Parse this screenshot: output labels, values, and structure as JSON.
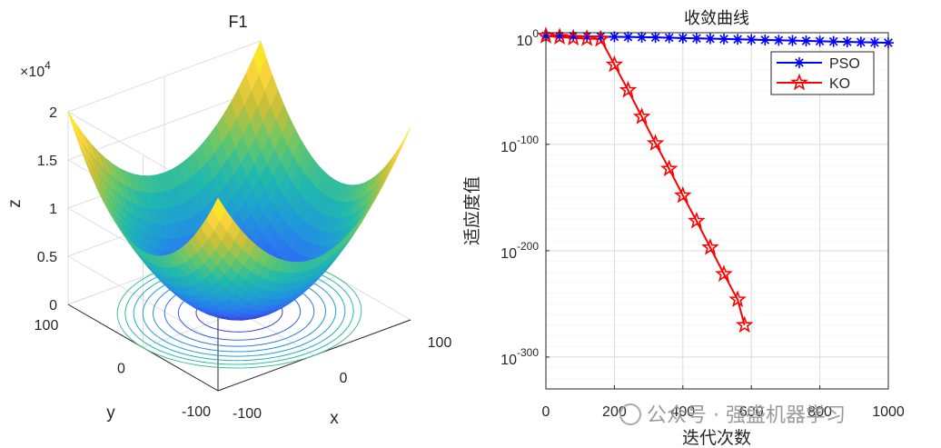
{
  "chart_data": [
    {
      "type": "surface3d",
      "title": "F1",
      "xlabel": "x",
      "ylabel": "y",
      "zlabel": "z",
      "z_exponent_label": "×10",
      "z_exponent_power": "4",
      "xlim": [
        -100,
        100
      ],
      "ylim": [
        -100,
        100
      ],
      "zlim": [
        0,
        20000
      ],
      "x_ticks": [
        "-100",
        "0",
        "100"
      ],
      "y_ticks": [
        "-100",
        "0",
        "100"
      ],
      "z_ticks": [
        "0",
        "0.5",
        "1",
        "1.5",
        "2"
      ],
      "function": "z = x^2 + y^2",
      "contour_levels": [
        1250,
        2500,
        3750,
        5000,
        6250,
        7500,
        8750,
        10000
      ],
      "colormap": [
        "#3e26a8",
        "#2e6bf7",
        "#1f9ad8",
        "#20b9ad",
        "#66c76a",
        "#c7bf3b",
        "#f9d43c",
        "#f9fb14"
      ]
    },
    {
      "type": "line",
      "title": "收敛曲线",
      "xlabel": "迭代次数",
      "ylabel": "适应度值",
      "yscale": "log",
      "xlim": [
        0,
        1000
      ],
      "ylim_exponent": [
        -330,
        5
      ],
      "x_ticks": [
        "0",
        "200",
        "400",
        "600",
        "800",
        "1000"
      ],
      "y_tick_base": "10",
      "y_tick_exponents": [
        "0",
        "-100",
        "-200",
        "-300"
      ],
      "grid": true,
      "legend_position": "top-right",
      "series": [
        {
          "name": "PSO",
          "color": "#0000ff",
          "marker": "asterisk",
          "x": [
            0,
            40,
            80,
            120,
            160,
            200,
            240,
            280,
            320,
            360,
            400,
            440,
            480,
            520,
            560,
            600,
            640,
            680,
            720,
            760,
            800,
            840,
            880,
            920,
            960,
            1000
          ],
          "log10_y": [
            2.0,
            1.9,
            1.8,
            1.6,
            1.4,
            1.2,
            1.0,
            0.8,
            0.6,
            0.3,
            0.0,
            -0.3,
            -0.6,
            -0.9,
            -1.2,
            -1.5,
            -1.8,
            -2.1,
            -2.4,
            -2.7,
            -3.0,
            -3.3,
            -3.6,
            -3.9,
            -4.2,
            -4.5
          ]
        },
        {
          "name": "KO",
          "color": "#ff0000",
          "marker": "pentagram",
          "x": [
            0,
            40,
            80,
            120,
            160,
            200,
            240,
            280,
            320,
            360,
            400,
            440,
            480,
            520,
            560,
            580
          ],
          "log10_y": [
            2.0,
            1.0,
            0.0,
            -0.5,
            -1.0,
            -25,
            -49,
            -74,
            -99,
            -123,
            -148,
            -172,
            -197,
            -222,
            -246,
            -270
          ]
        }
      ]
    }
  ],
  "watermark": "公众号 · 强盛机器学习"
}
